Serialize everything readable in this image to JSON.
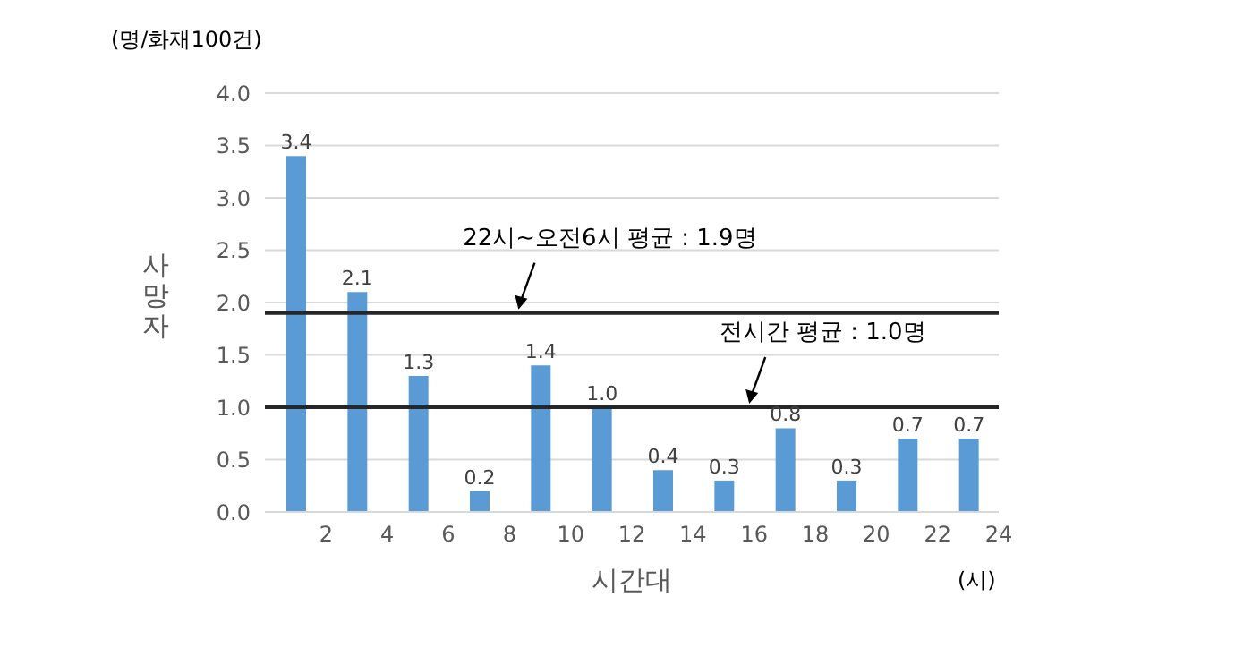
{
  "chart_data": {
    "type": "bar",
    "xlabel": "시간대",
    "ylabel": "사망자",
    "annotations": [
      "(명/화재100건)",
      "(시)"
    ],
    "x": [
      1,
      3,
      5,
      7,
      9,
      11,
      13,
      15,
      17,
      19,
      21,
      23
    ],
    "values": [
      3.4,
      2.1,
      1.3,
      0.2,
      1.4,
      1.0,
      0.4,
      0.3,
      0.8,
      0.3,
      0.7,
      0.7
    ],
    "color": "#5b9bd5",
    "value_labels": [
      "3.4",
      "2.1",
      "1.3",
      "0.2",
      "1.4",
      "1.0",
      "0.4",
      "0.3",
      "0.8",
      "0.3",
      "0.7",
      "0.7"
    ],
    "xlim": [
      0,
      24
    ],
    "xticks": [
      2,
      4,
      6,
      8,
      10,
      12,
      14,
      16,
      18,
      20,
      22,
      24
    ],
    "ylim": [
      0,
      4
    ],
    "yticks": [
      {
        "value": 0,
        "label": "0.0"
      },
      {
        "value": 0.5,
        "label": "0.5"
      },
      {
        "value": 1,
        "label": "1.0"
      },
      {
        "value": 1.5,
        "label": "1.5"
      },
      {
        "value": 2,
        "label": "2.0"
      },
      {
        "value": 2.5,
        "label": "2.5"
      },
      {
        "value": 3,
        "label": "3.0"
      },
      {
        "value": 3.5,
        "label": "3.5"
      },
      {
        "value": 4,
        "label": "4.0"
      }
    ],
    "grid": "y",
    "legend": false,
    "ref_lines": [
      {
        "axis": "y",
        "value": 1.9,
        "label": "22시~오전6시 평균 : 1.9명",
        "color": "#262626"
      },
      {
        "axis": "y",
        "value": 1.0,
        "label": "전시간 평균 : 1.0명",
        "color": "#262626"
      }
    ]
  }
}
